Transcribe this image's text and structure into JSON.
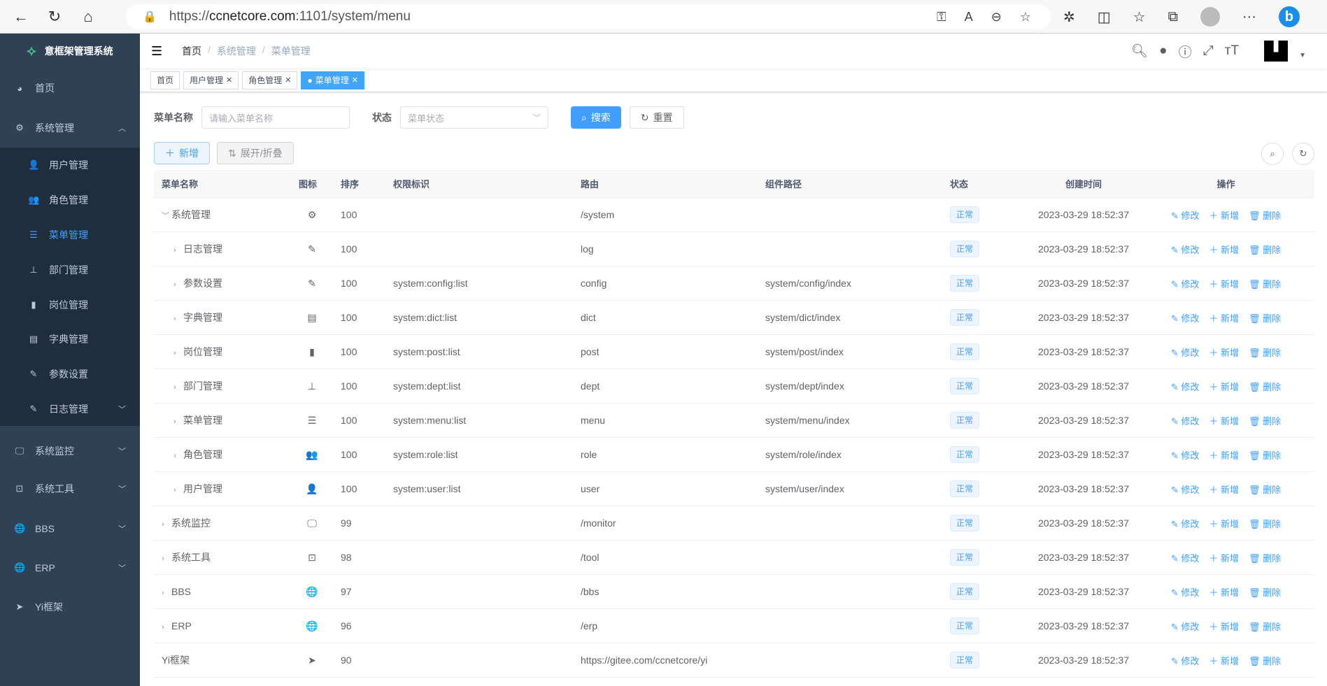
{
  "browser": {
    "url_scheme": "https://",
    "url_host": "ccnetcore.com",
    "url_path": ":1101/system/menu"
  },
  "sidebar": {
    "title": "意框架管理系统",
    "items": [
      {
        "label": "首页",
        "icon": "dashboard-icon"
      },
      {
        "label": "系统管理",
        "icon": "gear-icon",
        "expanded": true
      },
      {
        "label": "系统监控",
        "icon": "monitor-icon"
      },
      {
        "label": "系统工具",
        "icon": "toolbox-icon"
      },
      {
        "label": "BBS",
        "icon": "globe-icon"
      },
      {
        "label": "ERP",
        "icon": "globe-icon"
      },
      {
        "label": "Yi框架",
        "icon": "send-icon"
      }
    ],
    "subitems": [
      {
        "label": "用户管理",
        "icon": "user-icon"
      },
      {
        "label": "角色管理",
        "icon": "users-icon"
      },
      {
        "label": "菜单管理",
        "icon": "tree-table-icon",
        "active": true
      },
      {
        "label": "部门管理",
        "icon": "org-tree-icon"
      },
      {
        "label": "岗位管理",
        "icon": "post-icon"
      },
      {
        "label": "字典管理",
        "icon": "dict-icon"
      },
      {
        "label": "参数设置",
        "icon": "edit-icon"
      },
      {
        "label": "日志管理",
        "icon": "log-icon"
      }
    ]
  },
  "breadcrumb": [
    "首页",
    "系统管理",
    "菜单管理"
  ],
  "tags": [
    {
      "label": "首页"
    },
    {
      "label": "用户管理"
    },
    {
      "label": "角色管理"
    },
    {
      "label": "菜单管理",
      "active": true
    }
  ],
  "search": {
    "name_label": "菜单名称",
    "name_placeholder": "请输入菜单名称",
    "status_label": "状态",
    "status_placeholder": "菜单状态",
    "search_btn": "搜索",
    "reset_btn": "重置"
  },
  "toolbar": {
    "add": "新增",
    "toggle": "展开/折叠"
  },
  "table": {
    "headers": [
      "菜单名称",
      "图标",
      "排序",
      "权限标识",
      "路由",
      "组件路径",
      "状态",
      "创建时间",
      "操作"
    ],
    "ops": {
      "edit": "修改",
      "add": "新增",
      "delete": "删除"
    },
    "rows": [
      {
        "name": "系统管理",
        "level": 0,
        "expand": "down",
        "icon": "⚙",
        "sort": "100",
        "perms": "",
        "route": "/system",
        "component": "",
        "status": "正常",
        "time": "2023-03-29 18:52:37"
      },
      {
        "name": "日志管理",
        "level": 1,
        "expand": "right",
        "icon": "✎",
        "sort": "100",
        "perms": "",
        "route": "log",
        "component": "",
        "status": "正常",
        "time": "2023-03-29 18:52:37"
      },
      {
        "name": "参数设置",
        "level": 1,
        "expand": "right",
        "icon": "✎",
        "sort": "100",
        "perms": "system:config:list",
        "route": "config",
        "component": "system/config/index",
        "status": "正常",
        "time": "2023-03-29 18:52:37"
      },
      {
        "name": "字典管理",
        "level": 1,
        "expand": "right",
        "icon": "▤",
        "sort": "100",
        "perms": "system:dict:list",
        "route": "dict",
        "component": "system/dict/index",
        "status": "正常",
        "time": "2023-03-29 18:52:37"
      },
      {
        "name": "岗位管理",
        "level": 1,
        "expand": "right",
        "icon": "▮",
        "sort": "100",
        "perms": "system:post:list",
        "route": "post",
        "component": "system/post/index",
        "status": "正常",
        "time": "2023-03-29 18:52:37"
      },
      {
        "name": "部门管理",
        "level": 1,
        "expand": "right",
        "icon": "⊥",
        "sort": "100",
        "perms": "system:dept:list",
        "route": "dept",
        "component": "system/dept/index",
        "status": "正常",
        "time": "2023-03-29 18:52:37"
      },
      {
        "name": "菜单管理",
        "level": 1,
        "expand": "right",
        "icon": "☰",
        "sort": "100",
        "perms": "system:menu:list",
        "route": "menu",
        "component": "system/menu/index",
        "status": "正常",
        "time": "2023-03-29 18:52:37"
      },
      {
        "name": "角色管理",
        "level": 1,
        "expand": "right",
        "icon": "👥",
        "sort": "100",
        "perms": "system:role:list",
        "route": "role",
        "component": "system/role/index",
        "status": "正常",
        "time": "2023-03-29 18:52:37"
      },
      {
        "name": "用户管理",
        "level": 1,
        "expand": "right",
        "icon": "👤",
        "sort": "100",
        "perms": "system:user:list",
        "route": "user",
        "component": "system/user/index",
        "status": "正常",
        "time": "2023-03-29 18:52:37"
      },
      {
        "name": "系统监控",
        "level": 0,
        "expand": "right",
        "icon": "🖵",
        "sort": "99",
        "perms": "",
        "route": "/monitor",
        "component": "",
        "status": "正常",
        "time": "2023-03-29 18:52:37"
      },
      {
        "name": "系统工具",
        "level": 0,
        "expand": "right",
        "icon": "⊡",
        "sort": "98",
        "perms": "",
        "route": "/tool",
        "component": "",
        "status": "正常",
        "time": "2023-03-29 18:52:37"
      },
      {
        "name": "BBS",
        "level": 0,
        "expand": "right",
        "icon": "🌐",
        "sort": "97",
        "perms": "",
        "route": "/bbs",
        "component": "",
        "status": "正常",
        "time": "2023-03-29 18:52:37"
      },
      {
        "name": "ERP",
        "level": 0,
        "expand": "right",
        "icon": "🌐",
        "sort": "96",
        "perms": "",
        "route": "/erp",
        "component": "",
        "status": "正常",
        "time": "2023-03-29 18:52:37"
      },
      {
        "name": "Yi框架",
        "level": -1,
        "expand": "",
        "icon": "➤",
        "sort": "90",
        "perms": "",
        "route": "https://gitee.com/ccnetcore/yi",
        "component": "",
        "status": "正常",
        "time": "2023-03-29 18:52:37"
      }
    ]
  }
}
